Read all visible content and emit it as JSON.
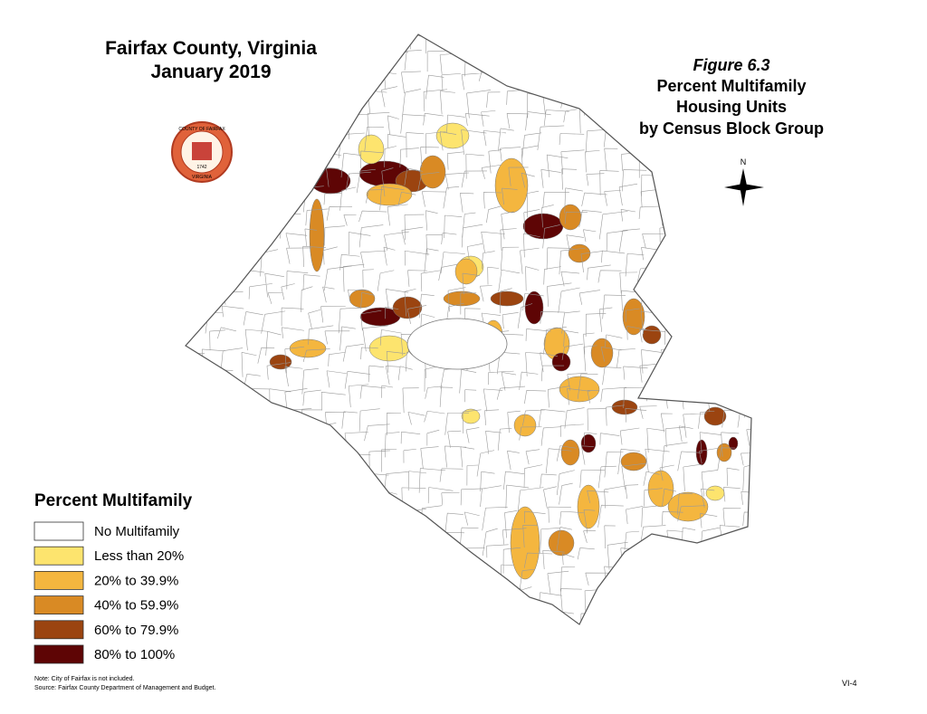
{
  "header": {
    "title": [
      "Fairfax County, Virginia",
      "January 2019"
    ]
  },
  "figure": {
    "label": "Figure 6.3",
    "title": [
      "Percent Multifamily",
      "Housing Units",
      "by Census Block Group"
    ]
  },
  "compass": "N",
  "seal": {
    "top": "COUNTY OF FAIRFAX",
    "year": "1742",
    "bottom": "VIRGINIA"
  },
  "legend": {
    "title": "Percent Multifamily",
    "items": [
      {
        "label": "No Multifamily",
        "color": "#ffffff"
      },
      {
        "label": "Less than 20%",
        "color": "#fde46e"
      },
      {
        "label": "20% to 39.9%",
        "color": "#f4b63f"
      },
      {
        "label": "40% to 59.9%",
        "color": "#d98a24"
      },
      {
        "label": "60% to 79.9%",
        "color": "#9b4410"
      },
      {
        "label": "80% to 100%",
        "color": "#5e0505"
      }
    ]
  },
  "notes": [
    "Note: City of Fairfax is not included.",
    "Source: Fairfax County Department of Management and Budget."
  ],
  "page": "VI-4"
}
